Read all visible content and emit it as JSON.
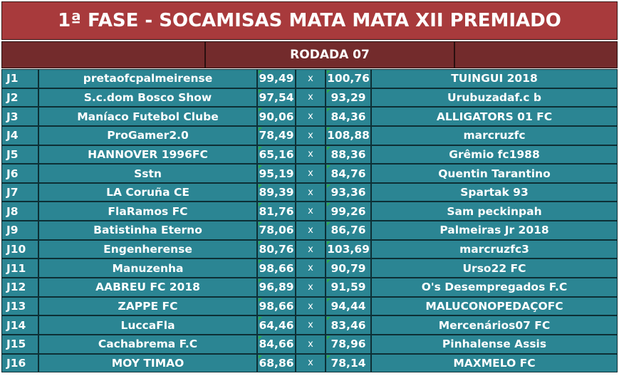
{
  "title": "1ª FASE - SOCAMISAS MATA MATA XII PREMIADO",
  "round": "RODADA 07",
  "separator": "x",
  "matches": [
    {
      "id": "J1",
      "home": "pretaofcpalmeirense",
      "home_score": "99,49",
      "away_score": "100,76",
      "away": "TUINGUI 2018"
    },
    {
      "id": "J2",
      "home": "S.c.dom Bosco Show",
      "home_score": "97,54",
      "away_score": "93,29",
      "away": "Urubuzadaf.c b"
    },
    {
      "id": "J3",
      "home": "Maníaco Futebol Clube",
      "home_score": "90,06",
      "away_score": "84,36",
      "away": "ALLIGATORS 01 FC"
    },
    {
      "id": "J4",
      "home": "ProGamer2.0",
      "home_score": "78,49",
      "away_score": "108,88",
      "away": "marcruzfc"
    },
    {
      "id": "J5",
      "home": "HANNOVER 1996FC",
      "home_score": "65,16",
      "away_score": "88,36",
      "away": "Grêmio fc1988"
    },
    {
      "id": "J6",
      "home": "Sstn",
      "home_score": "95,19",
      "away_score": "84,76",
      "away": "Quentin Tarantino"
    },
    {
      "id": "J7",
      "home": "LA Coruña CE",
      "home_score": "89,39",
      "away_score": "93,36",
      "away": "Spartak 93"
    },
    {
      "id": "J8",
      "home": "FlaRamos FC",
      "home_score": "81,76",
      "away_score": "99,26",
      "away": "Sam peckinpah"
    },
    {
      "id": "J9",
      "home": "Batistinha Eterno",
      "home_score": "78,06",
      "away_score": "86,76",
      "away": "Palmeiras Jr 2018"
    },
    {
      "id": "J10",
      "home": "Engenherense",
      "home_score": "80,76",
      "away_score": "103,69",
      "away": "marcruzfc3"
    },
    {
      "id": "J11",
      "home": "Manuzenha",
      "home_score": "98,66",
      "away_score": "90,79",
      "away": "Urso22 FC"
    },
    {
      "id": "J12",
      "home": "AABREU FC 2018",
      "home_score": "96,89",
      "away_score": "91,59",
      "away": "O's Desempregados F.C"
    },
    {
      "id": "J13",
      "home": "ZAPPE FC",
      "home_score": "98,66",
      "away_score": "94,44",
      "away": "MALUCONOPEDAÇOFC"
    },
    {
      "id": "J14",
      "home": "LuccaFla",
      "home_score": "64,46",
      "away_score": "83,46",
      "away": "Mercenários07 FC"
    },
    {
      "id": "J15",
      "home": "Cachabrema F.C",
      "home_score": "84,66",
      "away_score": "78,96",
      "away": "Pinhalense Assis"
    },
    {
      "id": "J16",
      "home": "MOY TIMAO",
      "home_score": "68,86",
      "away_score": "78,14",
      "away": "MAXMELO FC"
    }
  ],
  "colors": {
    "title_bg": "#a83a3c",
    "header_bg": "#732b2c",
    "row_bg": "#2b8593",
    "text": "#ffffff"
  }
}
